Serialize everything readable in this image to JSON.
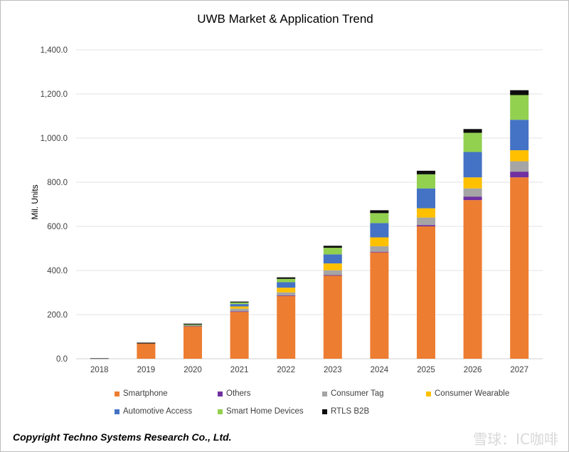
{
  "chart_data": {
    "type": "bar",
    "stacked": true,
    "title": "UWB Market & Application Trend",
    "xlabel": "",
    "ylabel": "Mil. Units",
    "ylim": [
      0,
      1400
    ],
    "yticks": [
      "0.0",
      "200.0",
      "400.0",
      "600.0",
      "800.0",
      "1,000.0",
      "1,200.0",
      "1,400.0"
    ],
    "ytick_values": [
      0,
      200,
      400,
      600,
      800,
      1000,
      1200,
      1400
    ],
    "grid": true,
    "legend_position": "bottom",
    "categories": [
      "2018",
      "2019",
      "2020",
      "2021",
      "2022",
      "2023",
      "2024",
      "2025",
      "2026",
      "2027"
    ],
    "series": [
      {
        "name": "Smartphone",
        "color": "#ed7d31",
        "values": [
          0,
          69,
          148,
          214,
          285,
          378,
          482,
          600,
          719,
          822
        ]
      },
      {
        "name": "Others",
        "color": "#7030a0",
        "values": [
          0,
          0,
          1,
          1,
          2,
          1,
          3,
          6,
          16,
          26
        ]
      },
      {
        "name": "Consumer Tag",
        "color": "#a5a5a5",
        "values": [
          0,
          0,
          1,
          12,
          14,
          22,
          25,
          34,
          37,
          47
        ]
      },
      {
        "name": "Consumer Wearable",
        "color": "#ffc000",
        "values": [
          0,
          0,
          1,
          10,
          21,
          31,
          40,
          42,
          50,
          50
        ]
      },
      {
        "name": "Automotive Access",
        "color": "#4472c4",
        "values": [
          0,
          0,
          1,
          11,
          25,
          41,
          65,
          90,
          115,
          138
        ]
      },
      {
        "name": "Smart Home Devices",
        "color": "#92d050",
        "values": [
          0,
          0,
          3,
          7,
          15,
          30,
          45,
          64,
          87,
          112
        ]
      },
      {
        "name": "RTLS B2B",
        "color": "#0d0d0d",
        "values": [
          2,
          4,
          4,
          4,
          7,
          9,
          13,
          16,
          17,
          22
        ]
      }
    ]
  },
  "copyright": "Copyright Techno Systems Research Co., Ltd.",
  "watermark": "雪球：IC咖啡"
}
